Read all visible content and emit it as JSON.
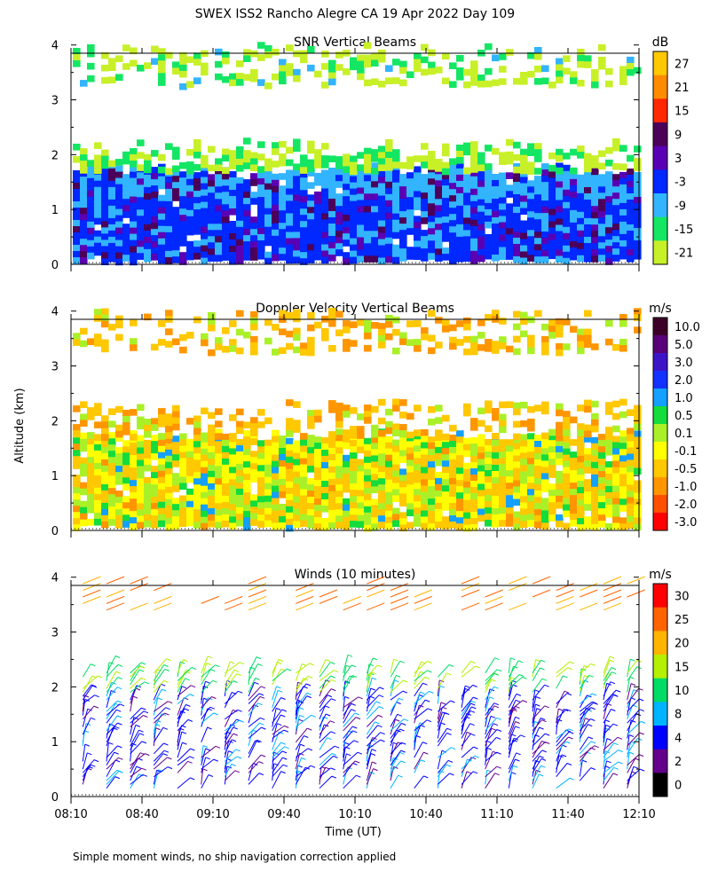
{
  "figure": {
    "title": "SWEX ISS2 Rancho Alegre CA  19 Apr 2022 Day 109",
    "ylabel": "Altitude (km)",
    "xlabel": "Time (UT)",
    "footnote": "Simple moment winds, no ship navigation correction applied",
    "x_ticks": [
      "08:10",
      "08:40",
      "09:10",
      "09:40",
      "10:10",
      "10:40",
      "11:10",
      "11:40",
      "12:10"
    ],
    "y_ticks": [
      "0",
      "1",
      "2",
      "3",
      "4"
    ]
  },
  "chart_data": [
    {
      "type": "heatmap",
      "title": "SNR Vertical Beams",
      "unit": "dB",
      "x_range": [
        "08:10",
        "12:10"
      ],
      "y_range": [
        0,
        4
      ],
      "colorbar_labels": [
        "27",
        "21",
        "15",
        "9",
        "3",
        "-3",
        "-9",
        "-15",
        "-21"
      ],
      "colorbar_colors": [
        "#ffc800",
        "#ff8c00",
        "#ff2800",
        "#4b005a",
        "#5a00b4",
        "#0028ff",
        "#32b4ff",
        "#14e664",
        "#c8f028"
      ],
      "layers": [
        {
          "from_km": 0.1,
          "to_km": 1.75,
          "level": "-3 to 9"
        },
        {
          "from_km": 1.75,
          "to_km": 2.2,
          "level": "-21 to -9"
        },
        {
          "from_km": 3.3,
          "to_km": 3.95,
          "level": "-21 to -15"
        }
      ]
    },
    {
      "type": "heatmap",
      "title": "Doppler Velocity Vertical Beams",
      "unit": "m/s",
      "x_range": [
        "08:10",
        "12:10"
      ],
      "y_range": [
        0,
        4
      ],
      "colorbar_labels": [
        "10.0",
        "5.0",
        "3.0",
        "2.0",
        "1.0",
        "0.5",
        "0.1",
        "-0.1",
        "-0.5",
        "-1.0",
        "-2.0",
        "-3.0"
      ],
      "colorbar_colors": [
        "#3c0028",
        "#5a0078",
        "#3c14c8",
        "#1432ff",
        "#14a0ff",
        "#14dc3c",
        "#aaf028",
        "#ffff00",
        "#ffc800",
        "#ff9600",
        "#ff5000",
        "#ff0000"
      ],
      "layers": [
        {
          "from_km": 0.1,
          "to_km": 1.75,
          "level": "-0.5 to 0.1"
        },
        {
          "from_km": 1.75,
          "to_km": 2.3,
          "level": "-1.0 to -0.1"
        },
        {
          "from_km": 3.3,
          "to_km": 3.95,
          "level": "-1.0 to 0.5"
        }
      ]
    },
    {
      "type": "scatter",
      "title": "Winds (10 minutes)",
      "unit": "m/s",
      "marker": "wind barbs",
      "x_range": [
        "08:10",
        "12:10"
      ],
      "y_range": [
        0,
        4
      ],
      "colorbar_labels": [
        "30",
        "25",
        "20",
        "15",
        "10",
        "8",
        "4",
        "2",
        "0"
      ],
      "colorbar_colors": [
        "#ff0000",
        "#ff6400",
        "#ffb400",
        "#b4f000",
        "#00dc64",
        "#00b4ff",
        "#0000ff",
        "#64008c",
        "#000000"
      ],
      "profile_times": [
        "08:15",
        "08:25",
        "08:35",
        "08:45",
        "08:55",
        "09:05",
        "09:15",
        "09:25",
        "09:35",
        "09:45",
        "09:55",
        "10:05",
        "10:15",
        "10:25",
        "10:35",
        "10:45",
        "10:55",
        "11:05",
        "11:15",
        "11:25",
        "11:35",
        "11:45",
        "11:55",
        "12:05"
      ]
    }
  ]
}
